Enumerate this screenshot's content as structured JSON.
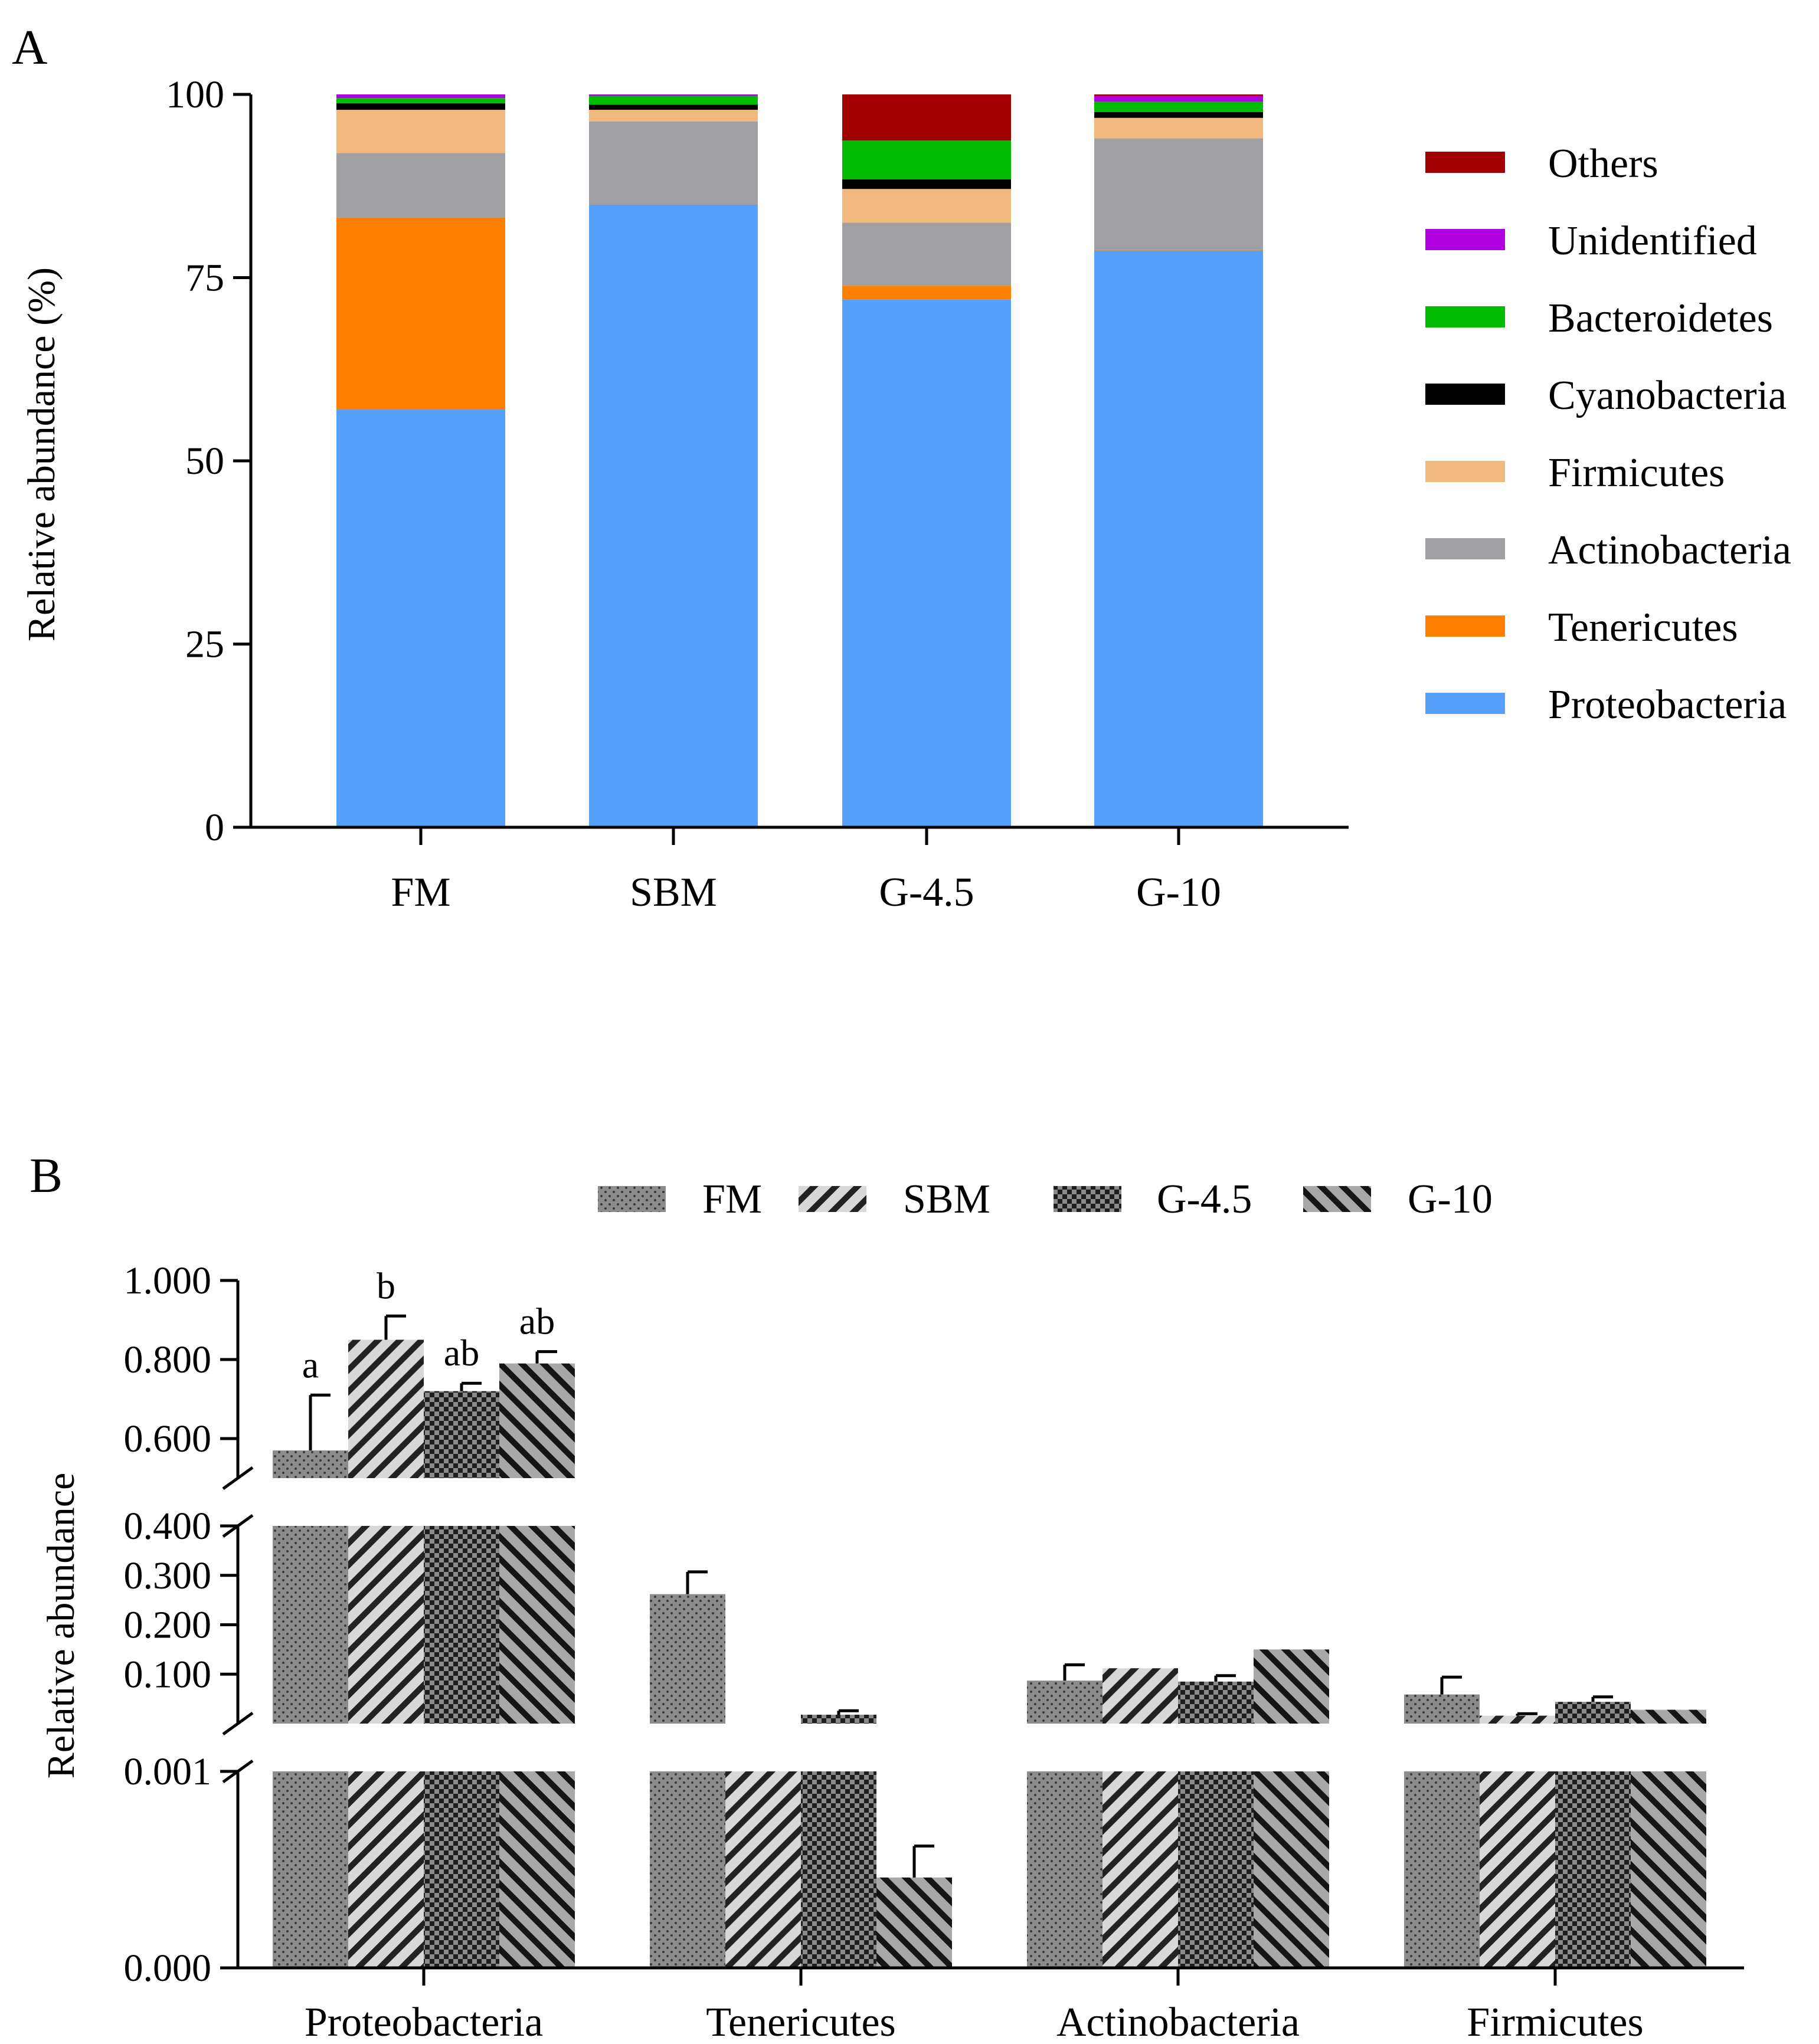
{
  "chart_data": [
    {
      "panel": "A",
      "type": "bar",
      "stacked": true,
      "ylabel": "Relative abundance (%)",
      "ylim": [
        0,
        100
      ],
      "yticks": [
        "0",
        "25",
        "50",
        "75",
        "100"
      ],
      "categories": [
        "FM",
        "SBM",
        "G-4.5",
        "G-10"
      ],
      "series": [
        {
          "name": "Proteobacteria",
          "color": "#56A0FB",
          "values": [
            57.0,
            85.0,
            72.0,
            78.7
          ]
        },
        {
          "name": "Tenericutes",
          "color": "#FF8000",
          "values": [
            26.2,
            0.1,
            1.9,
            0.1
          ]
        },
        {
          "name": "Actinobacteria",
          "color": "#A0A0A4",
          "values": [
            8.8,
            11.2,
            8.6,
            15.2
          ]
        },
        {
          "name": "Firmicutes",
          "color": "#F2B97E",
          "values": [
            5.9,
            1.6,
            4.6,
            2.8
          ]
        },
        {
          "name": "Cyanobacteria",
          "color": "#000000",
          "values": [
            0.9,
            0.7,
            1.3,
            0.8
          ]
        },
        {
          "name": "Bacteroidetes",
          "color": "#00BB00",
          "values": [
            0.7,
            1.2,
            5.3,
            1.4
          ]
        },
        {
          "name": "Unidentified",
          "color": "#B000E0",
          "values": [
            0.5,
            0.2,
            0.0,
            0.8
          ]
        },
        {
          "name": "Others",
          "color": "#A00000",
          "values": [
            0.0,
            0.0,
            6.3,
            0.2
          ]
        }
      ],
      "legend_order": [
        "Others",
        "Unidentified",
        "Bacteroidetes",
        "Cyanobacteria",
        "Firmicutes",
        "Actinobacteria",
        "Tenericutes",
        "Proteobacteria"
      ],
      "legend_position": "right"
    },
    {
      "panel": "B",
      "type": "bar",
      "grouped": true,
      "ylabel": "Relative abundance",
      "categories": [
        "Proteobacteria",
        "Tenericutes",
        "Actinobacteria",
        "Firmicutes"
      ],
      "groups": [
        "FM",
        "SBM",
        "G-4.5",
        "G-10"
      ],
      "broken_axis_segments": [
        {
          "range": [
            0.0,
            0.001
          ],
          "ticks": [
            0.0,
            0.001
          ],
          "tick_labels": [
            "0.000",
            "0.001"
          ]
        },
        {
          "range": [
            0.0,
            0.4
          ],
          "ticks": [
            0.1,
            0.2,
            0.3,
            0.4
          ],
          "tick_labels": [
            "0.100",
            "0.200",
            "0.300",
            "0.400"
          ]
        },
        {
          "range": [
            0.5,
            1.0
          ],
          "ticks": [
            0.6,
            0.8,
            1.0
          ],
          "tick_labels": [
            "0.600",
            "0.800",
            "1.000"
          ]
        }
      ],
      "series": [
        {
          "name": "FM",
          "pattern": "dots",
          "values": [
            0.57,
            0.262,
            0.087,
            0.059
          ],
          "errors": [
            0.14,
            0.045,
            0.032,
            0.035
          ]
        },
        {
          "name": "SBM",
          "pattern": "diag-right",
          "values": [
            0.85,
            0.001,
            0.112,
            0.016
          ],
          "errors": [
            0.06,
            0.0,
            0.0,
            0.004
          ]
        },
        {
          "name": "G-4.5",
          "pattern": "checker",
          "values": [
            0.72,
            0.018,
            0.085,
            0.044
          ],
          "errors": [
            0.02,
            0.008,
            0.012,
            0.01
          ]
        },
        {
          "name": "G-10",
          "pattern": "diag-left",
          "values": [
            0.79,
            0.00046,
            0.15,
            0.028
          ],
          "errors": [
            0.03,
            0.00016,
            0.0,
            0.0
          ]
        }
      ],
      "significance_letters": {
        "Proteobacteria": [
          "a",
          "b",
          "ab",
          "ab"
        ]
      },
      "legend_position": "top"
    }
  ]
}
